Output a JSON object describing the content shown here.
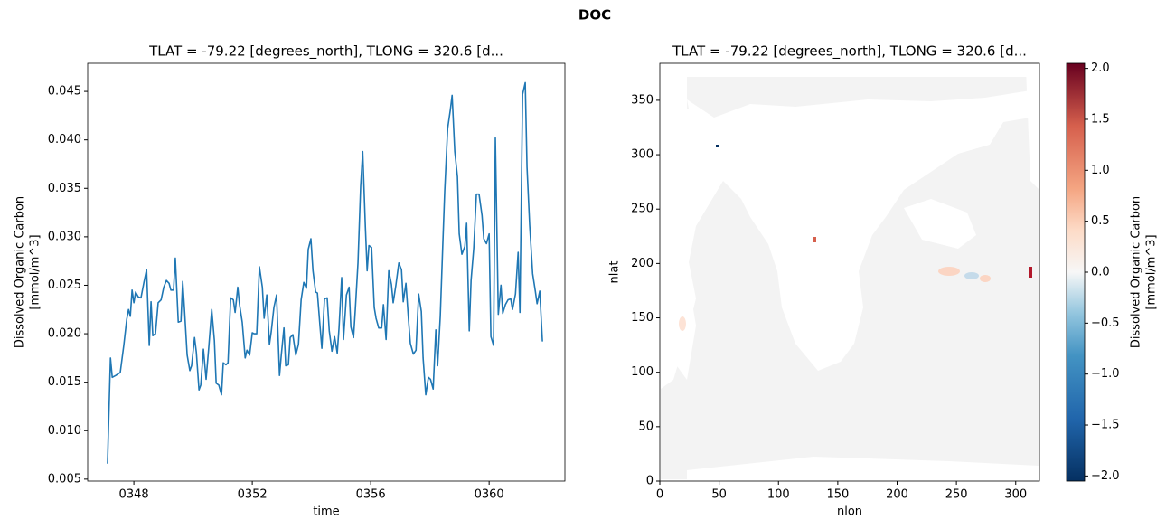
{
  "title": "DOC",
  "chart_data": [
    {
      "type": "line",
      "title": "TLAT = -79.22 [degrees_north], TLONG = 320.6 [d...",
      "xlabel": "time",
      "ylabel": [
        "Dissolved Organic Carbon",
        "[mmol/m^3]"
      ],
      "color": "#1f77b4",
      "x": [
        347.11,
        347.15,
        347.21,
        347.27,
        347.39,
        347.54,
        347.66,
        347.76,
        347.82,
        347.88,
        347.94,
        348.0,
        348.06,
        348.15,
        348.24,
        348.34,
        348.43,
        348.52,
        348.58,
        348.64,
        348.73,
        348.82,
        348.92,
        349.01,
        349.1,
        349.19,
        349.25,
        349.34,
        349.4,
        349.5,
        349.59,
        349.65,
        349.71,
        349.8,
        349.89,
        349.95,
        350.05,
        350.11,
        350.2,
        350.26,
        350.35,
        350.44,
        350.53,
        350.63,
        350.72,
        350.78,
        350.87,
        350.96,
        351.02,
        351.11,
        351.18,
        351.27,
        351.36,
        351.42,
        351.51,
        351.57,
        351.66,
        351.76,
        351.82,
        351.91,
        352.0,
        352.06,
        352.15,
        352.24,
        352.34,
        352.4,
        352.49,
        352.58,
        352.64,
        352.73,
        352.82,
        352.92,
        352.98,
        353.07,
        353.13,
        353.22,
        353.28,
        353.37,
        353.47,
        353.56,
        353.65,
        353.74,
        353.83,
        353.89,
        353.98,
        354.05,
        354.14,
        354.2,
        354.29,
        354.35,
        354.44,
        354.53,
        354.6,
        354.69,
        354.78,
        354.87,
        354.93,
        355.02,
        355.08,
        355.18,
        355.27,
        355.33,
        355.42,
        355.48,
        355.57,
        355.66,
        355.73,
        355.82,
        355.88,
        355.94,
        356.03,
        356.12,
        356.18,
        356.27,
        356.37,
        356.43,
        356.52,
        356.61,
        356.7,
        356.76,
        356.85,
        356.95,
        357.04,
        357.1,
        357.19,
        357.28,
        357.34,
        357.44,
        357.53,
        357.62,
        357.71,
        357.77,
        357.86,
        357.95,
        358.02,
        358.11,
        358.2,
        358.26,
        358.35,
        358.44,
        358.5,
        358.6,
        358.69,
        358.75,
        358.84,
        358.93,
        358.99,
        359.08,
        359.18,
        359.24,
        359.33,
        359.39,
        359.48,
        359.57,
        359.66,
        359.76,
        359.82,
        359.91,
        360.0,
        360.06,
        360.15,
        360.21,
        360.31,
        360.4,
        360.46,
        360.55,
        360.64,
        360.73,
        360.79,
        360.89,
        360.98,
        361.04,
        361.13,
        361.22,
        361.28,
        361.37,
        361.47,
        361.56,
        361.62,
        361.71,
        361.8
      ],
      "values": [
        0.0066,
        0.011,
        0.0175,
        0.0155,
        0.0157,
        0.016,
        0.0188,
        0.0215,
        0.0225,
        0.0218,
        0.0245,
        0.0232,
        0.0243,
        0.0238,
        0.0237,
        0.0253,
        0.0266,
        0.0188,
        0.0233,
        0.0198,
        0.02,
        0.0232,
        0.0235,
        0.0248,
        0.0255,
        0.0252,
        0.0245,
        0.0245,
        0.0278,
        0.0212,
        0.0213,
        0.0254,
        0.0225,
        0.0178,
        0.0162,
        0.0167,
        0.0196,
        0.0181,
        0.0142,
        0.0147,
        0.0184,
        0.0153,
        0.0186,
        0.0225,
        0.0193,
        0.0149,
        0.0147,
        0.0137,
        0.017,
        0.0168,
        0.017,
        0.0237,
        0.0235,
        0.0222,
        0.0248,
        0.023,
        0.0212,
        0.0175,
        0.0183,
        0.0178,
        0.0201,
        0.02,
        0.02,
        0.0269,
        0.0248,
        0.0216,
        0.024,
        0.0189,
        0.0202,
        0.0227,
        0.024,
        0.0157,
        0.0178,
        0.0206,
        0.0167,
        0.0168,
        0.0196,
        0.0199,
        0.0178,
        0.0189,
        0.0235,
        0.0253,
        0.0247,
        0.0287,
        0.0298,
        0.0265,
        0.0243,
        0.0242,
        0.0207,
        0.0185,
        0.0236,
        0.0237,
        0.0203,
        0.0182,
        0.0197,
        0.018,
        0.0206,
        0.0258,
        0.0194,
        0.024,
        0.0248,
        0.0207,
        0.0196,
        0.0225,
        0.0273,
        0.0352,
        0.0388,
        0.031,
        0.0265,
        0.0291,
        0.0289,
        0.0227,
        0.0216,
        0.0206,
        0.0206,
        0.023,
        0.0194,
        0.0265,
        0.0251,
        0.0232,
        0.025,
        0.0273,
        0.0266,
        0.0233,
        0.0252,
        0.0213,
        0.019,
        0.0179,
        0.0183,
        0.0241,
        0.0223,
        0.0175,
        0.0137,
        0.0155,
        0.0153,
        0.0143,
        0.0204,
        0.0167,
        0.0218,
        0.0296,
        0.0347,
        0.0412,
        0.0431,
        0.0446,
        0.0388,
        0.0362,
        0.0303,
        0.0282,
        0.029,
        0.0314,
        0.0203,
        0.0255,
        0.0288,
        0.0344,
        0.0344,
        0.0322,
        0.0298,
        0.0293,
        0.0303,
        0.0197,
        0.0188,
        0.0402,
        0.022,
        0.025,
        0.0221,
        0.023,
        0.0235,
        0.0236,
        0.0225,
        0.0241,
        0.0284,
        0.0222,
        0.0447,
        0.0459,
        0.0372,
        0.0312,
        0.0262,
        0.0244,
        0.0231,
        0.0244,
        0.0192
      ],
      "xlim": [
        346.44,
        362.56
      ],
      "xticks": [
        {
          "value": 348,
          "label": "0348"
        },
        {
          "value": 352,
          "label": "0352"
        },
        {
          "value": 356,
          "label": "0356"
        },
        {
          "value": 360,
          "label": "0360"
        }
      ],
      "ylim": [
        0.0048,
        0.0479
      ],
      "yticks": [
        0.005,
        {
          "value": 0.01,
          "label": "0.010"
        },
        0.015,
        {
          "value": 0.02,
          "label": "0.020"
        },
        0.025,
        {
          "value": 0.03,
          "label": "0.030"
        },
        0.035,
        {
          "value": 0.04,
          "label": "0.040"
        },
        0.045
      ]
    },
    {
      "type": "map",
      "title": "TLAT = -79.22 [degrees_north], TLONG = 320.6 [d...",
      "xlabel": "nlon",
      "ylabel": "nlat",
      "xlim": [
        0,
        320
      ],
      "xticks": [
        0,
        50,
        100,
        150,
        200,
        250,
        300
      ],
      "ylim": [
        0,
        384
      ],
      "yticks": [
        0,
        50,
        100,
        150,
        200,
        250,
        300,
        350
      ],
      "colorbar": {
        "label": [
          "Dissolved Organic Carbon",
          "[mmol/m^3]"
        ],
        "lim": [
          -2.05,
          2.05
        ],
        "ticks": [
          {
            "value": -2,
            "label": "−2.0"
          },
          {
            "value": -1.5,
            "label": "−1.5"
          },
          {
            "value": -1,
            "label": "−1.0"
          },
          {
            "value": -0.5,
            "label": "−0.5"
          },
          {
            "value": 0,
            "label": "0.0"
          },
          0.5,
          {
            "value": 1,
            "label": "1.0"
          },
          1.5,
          {
            "value": 2,
            "label": "2.0"
          }
        ]
      }
    }
  ]
}
